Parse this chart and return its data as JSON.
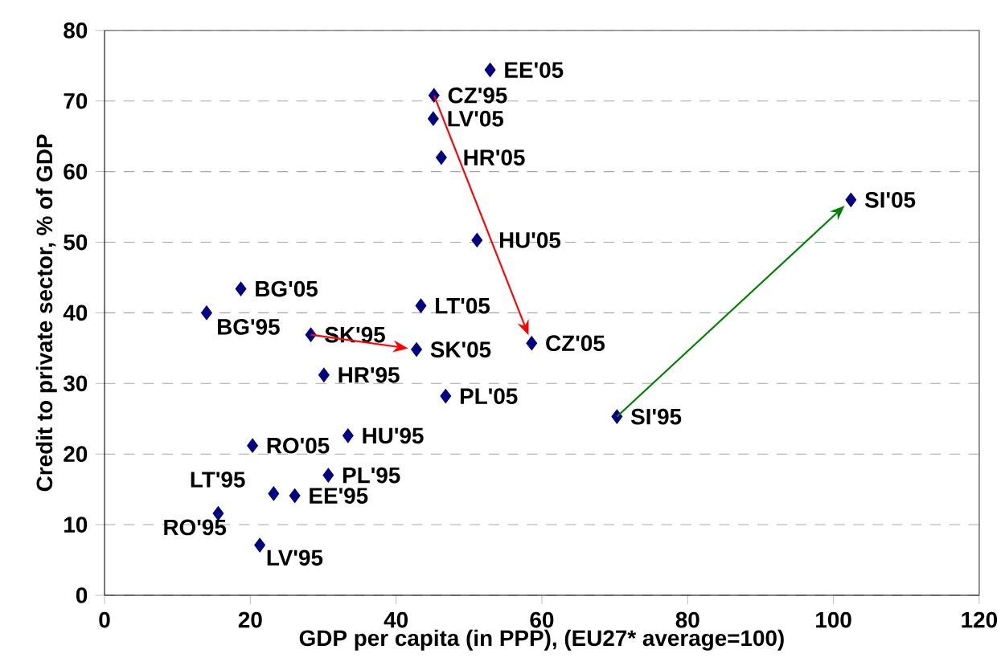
{
  "chart_data": {
    "type": "scatter",
    "xlabel": "GDP per capita (in PPP), (EU27* average=100)",
    "ylabel": "Credit to private sector, % of GDP",
    "xlim": [
      0,
      120
    ],
    "ylim": [
      0,
      80
    ],
    "xticks": [
      0,
      20,
      40,
      60,
      80,
      100,
      120
    ],
    "yticks": [
      0,
      10,
      20,
      30,
      40,
      50,
      60,
      70,
      80
    ],
    "grid": "y",
    "legend": false,
    "marker": "diamond",
    "series": [
      {
        "color": "#000080",
        "x": [
          52.9,
          45.2,
          45.1,
          46.2,
          51.1,
          18.7,
          14.0,
          43.4,
          28.3,
          42.8,
          58.6,
          30.1,
          46.8,
          70.3,
          102.4,
          33.4,
          20.3,
          30.7,
          23.2,
          26.1,
          15.6,
          21.3
        ],
        "values": [
          74.4,
          70.8,
          67.5,
          62.0,
          50.3,
          43.4,
          40.0,
          41.0,
          36.9,
          34.8,
          35.7,
          31.2,
          28.2,
          25.3,
          56.0,
          22.6,
          21.2,
          17.0,
          14.4,
          14.1,
          11.6,
          7.1
        ]
      }
    ],
    "annotations": [
      {
        "text": "EE'05",
        "x": 52.9,
        "y": 74.4
      },
      {
        "text": "CZ'95",
        "x": 45.2,
        "y": 70.8
      },
      {
        "text": "LV'05",
        "x": 45.1,
        "y": 67.5
      },
      {
        "text": "HR'05",
        "x": 46.2,
        "y": 62.0
      },
      {
        "text": "HU'05",
        "x": 51.1,
        "y": 50.3
      },
      {
        "text": "BG'05",
        "x": 18.7,
        "y": 43.4
      },
      {
        "text": "BG'95",
        "x": 14.0,
        "y": 40.0
      },
      {
        "text": "LT'05",
        "x": 43.4,
        "y": 41.0
      },
      {
        "text": "SK'95",
        "x": 28.3,
        "y": 36.9
      },
      {
        "text": "SK'05",
        "x": 42.8,
        "y": 34.8
      },
      {
        "text": "CZ'05",
        "x": 58.6,
        "y": 35.7
      },
      {
        "text": "HR'95",
        "x": 30.1,
        "y": 31.2
      },
      {
        "text": "PL'05",
        "x": 46.8,
        "y": 28.2
      },
      {
        "text": "SI'95",
        "x": 70.3,
        "y": 25.3
      },
      {
        "text": "SI'05",
        "x": 102.4,
        "y": 56.0
      },
      {
        "text": "HU'95",
        "x": 33.4,
        "y": 22.6
      },
      {
        "text": "RO'05",
        "x": 20.3,
        "y": 21.2
      },
      {
        "text": "PL'95",
        "x": 30.7,
        "y": 17.0
      },
      {
        "text": "LT'95",
        "x": 23.2,
        "y": 14.4
      },
      {
        "text": "EE'95",
        "x": 26.1,
        "y": 14.1
      },
      {
        "text": "RO'95",
        "x": 15.6,
        "y": 11.6
      },
      {
        "text": "LV'95",
        "x": 21.3,
        "y": 7.1
      }
    ]
  }
}
